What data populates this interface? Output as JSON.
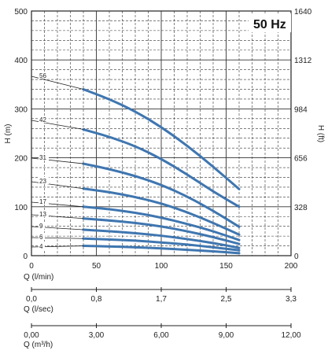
{
  "chart_data": {
    "type": "line",
    "title": "50 Hz",
    "ylabel_left": "H (m)",
    "ylabel_right": "H (ft)",
    "xlabel": "Q (l/min)",
    "xlim": [
      0,
      200
    ],
    "ylim": [
      0,
      500
    ],
    "x_ticks": [
      "0",
      "50",
      "100",
      "150",
      "200"
    ],
    "y_ticks_left": [
      "0",
      "100",
      "200",
      "300",
      "400",
      "500"
    ],
    "y_ticks_right": [
      "0",
      "328",
      "656",
      "984",
      "1312",
      "1640"
    ],
    "grid": true,
    "secondary_axes": [
      {
        "label": "Q (l/sec)",
        "ticks": [
          "0,0",
          "0,8",
          "1,7",
          "2,5",
          "3,3"
        ]
      },
      {
        "label": "Q (m³/h)",
        "ticks": [
          "0,00",
          "3,00",
          "6,00",
          "9,00",
          "12,00"
        ]
      }
    ],
    "series": [
      {
        "name": "4",
        "x": [
          40,
          60,
          80,
          100,
          120,
          140,
          160
        ],
        "y": [
          20,
          19,
          17,
          15,
          12,
          9,
          5
        ]
      },
      {
        "name": "6",
        "x": [
          40,
          60,
          80,
          100,
          120,
          140,
          160
        ],
        "y": [
          35,
          33,
          31,
          27,
          23,
          17,
          11
        ]
      },
      {
        "name": "9",
        "x": [
          40,
          60,
          80,
          100,
          120,
          140,
          160
        ],
        "y": [
          53,
          50,
          46,
          41,
          34,
          26,
          16
        ]
      },
      {
        "name": "13",
        "x": [
          40,
          60,
          80,
          100,
          120,
          140,
          160
        ],
        "y": [
          76,
          72,
          67,
          60,
          50,
          38,
          24
        ]
      },
      {
        "name": "17",
        "x": [
          40,
          60,
          80,
          100,
          120,
          140,
          160
        ],
        "y": [
          100,
          95,
          88,
          78,
          65,
          50,
          32
        ]
      },
      {
        "name": "23",
        "x": [
          40,
          60,
          80,
          100,
          120,
          140,
          160
        ],
        "y": [
          137,
          130,
          120,
          107,
          89,
          67,
          43
        ]
      },
      {
        "name": "31",
        "x": [
          40,
          60,
          80,
          100,
          120,
          140,
          160
        ],
        "y": [
          188,
          177,
          163,
          145,
          121,
          92,
          59
        ]
      },
      {
        "name": "42",
        "x": [
          40,
          60,
          80,
          100,
          120,
          140,
          160
        ],
        "y": [
          258,
          243,
          224,
          198,
          166,
          131,
          100
        ]
      },
      {
        "name": "56",
        "x": [
          40,
          60,
          80,
          100,
          120,
          140,
          160
        ],
        "y": [
          340,
          320,
          295,
          263,
          225,
          182,
          136
        ]
      }
    ],
    "colors": {
      "curve": "#3f76b0",
      "grid": "#333333",
      "leader": "#222222"
    }
  }
}
